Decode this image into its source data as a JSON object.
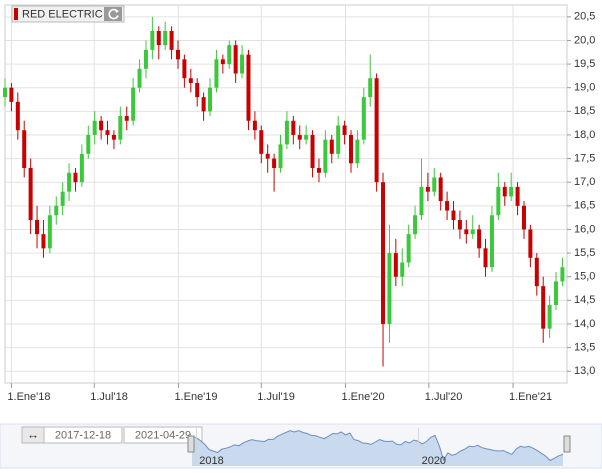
{
  "chart_data": {
    "type": "candlestick",
    "title": "RED ELECTRIC",
    "x": [
      "2017-12-18",
      "2018-01-01",
      "2018-01-15",
      "2018-01-29",
      "2018-02-12",
      "2018-02-26",
      "2018-03-12",
      "2018-03-26",
      "2018-04-09",
      "2018-04-23",
      "2018-05-07",
      "2018-05-21",
      "2018-06-04",
      "2018-06-18",
      "2018-07-02",
      "2018-07-16",
      "2018-07-30",
      "2018-08-13",
      "2018-08-27",
      "2018-09-10",
      "2018-09-24",
      "2018-10-08",
      "2018-10-22",
      "2018-11-05",
      "2018-11-19",
      "2018-12-03",
      "2018-12-17",
      "2018-12-31",
      "2019-01-14",
      "2019-01-28",
      "2019-02-11",
      "2019-02-25",
      "2019-03-11",
      "2019-03-25",
      "2019-04-08",
      "2019-04-22",
      "2019-05-06",
      "2019-05-20",
      "2019-06-03",
      "2019-06-17",
      "2019-07-01",
      "2019-07-15",
      "2019-07-29",
      "2019-08-12",
      "2019-08-26",
      "2019-09-09",
      "2019-09-23",
      "2019-10-07",
      "2019-10-21",
      "2019-11-04",
      "2019-11-18",
      "2019-12-02",
      "2019-12-16",
      "2019-12-30",
      "2020-01-13",
      "2020-01-27",
      "2020-02-10",
      "2020-02-24",
      "2020-03-09",
      "2020-03-23",
      "2020-04-06",
      "2020-04-20",
      "2020-05-04",
      "2020-05-18",
      "2020-06-01",
      "2020-06-15",
      "2020-06-29",
      "2020-07-13",
      "2020-07-27",
      "2020-08-10",
      "2020-08-24",
      "2020-09-07",
      "2020-09-21",
      "2020-10-05",
      "2020-10-19",
      "2020-11-02",
      "2020-11-16",
      "2020-11-30",
      "2020-12-14",
      "2020-12-28",
      "2021-01-11",
      "2021-01-25",
      "2021-02-08",
      "2021-02-22",
      "2021-03-08",
      "2021-03-22",
      "2021-04-05",
      "2021-04-19"
    ],
    "open": [
      18.8,
      19.0,
      18.7,
      18.1,
      17.3,
      16.2,
      15.9,
      15.6,
      16.3,
      16.5,
      16.8,
      17.2,
      17.0,
      17.6,
      18.0,
      18.3,
      18.1,
      18.0,
      17.9,
      18.4,
      18.3,
      19.0,
      19.4,
      19.8,
      20.2,
      19.9,
      20.2,
      19.8,
      19.6,
      19.2,
      19.1,
      18.8,
      18.5,
      19.0,
      19.6,
      19.5,
      19.9,
      19.3,
      19.7,
      18.3,
      18.1,
      17.6,
      17.5,
      17.3,
      17.8,
      18.3,
      18.0,
      17.9,
      18.0,
      17.3,
      17.2,
      17.9,
      17.6,
      18.2,
      18.0,
      17.4,
      17.9,
      18.8,
      19.2,
      17.0,
      14.0,
      15.5,
      15.0,
      15.3,
      15.9,
      16.3,
      16.9,
      16.8,
      17.1,
      16.6,
      16.4,
      16.2,
      16.0,
      15.9,
      16.0,
      15.6,
      15.2,
      16.3,
      16.9,
      16.7,
      16.9,
      16.5,
      16.0,
      15.4,
      14.8,
      13.9,
      14.4,
      14.9
    ],
    "high": [
      19.2,
      19.1,
      18.9,
      18.3,
      17.5,
      16.5,
      16.2,
      16.5,
      16.7,
      17.0,
      17.4,
      17.3,
      17.8,
      18.2,
      18.5,
      18.4,
      18.3,
      18.1,
      18.6,
      18.6,
      19.2,
      19.6,
      20.0,
      20.5,
      20.3,
      20.4,
      20.3,
      20.0,
      19.7,
      19.4,
      19.2,
      18.9,
      19.2,
      19.8,
      19.7,
      20.0,
      20.0,
      19.9,
      19.8,
      18.5,
      18.2,
      17.8,
      17.6,
      18.0,
      18.5,
      18.4,
      18.2,
      18.2,
      18.1,
      17.5,
      18.1,
      18.0,
      18.4,
      18.3,
      18.1,
      18.1,
      19.0,
      19.7,
      19.3,
      17.2,
      16.1,
      15.8,
      15.6,
      16.1,
      16.5,
      17.5,
      17.2,
      17.3,
      17.2,
      16.8,
      16.6,
      16.4,
      16.2,
      16.3,
      16.1,
      15.8,
      16.5,
      17.2,
      17.0,
      17.2,
      17.0,
      16.6,
      16.1,
      15.5,
      15.0,
      14.6,
      15.1,
      15.4
    ],
    "low": [
      18.6,
      18.5,
      17.9,
      17.1,
      15.9,
      15.6,
      15.4,
      15.5,
      16.1,
      16.3,
      16.6,
      16.8,
      16.9,
      17.5,
      17.8,
      17.9,
      17.8,
      17.7,
      17.8,
      18.1,
      18.2,
      18.9,
      19.2,
      19.6,
      19.6,
      19.8,
      19.6,
      19.4,
      19.0,
      18.9,
      18.6,
      18.3,
      18.4,
      18.9,
      19.3,
      19.4,
      19.1,
      19.2,
      18.1,
      17.9,
      17.4,
      17.2,
      16.8,
      17.2,
      17.7,
      17.8,
      17.7,
      17.8,
      17.1,
      17.0,
      17.1,
      17.4,
      17.5,
      17.8,
      17.2,
      17.3,
      17.8,
      18.6,
      16.8,
      13.1,
      13.6,
      14.8,
      14.8,
      15.2,
      15.8,
      16.2,
      16.6,
      16.7,
      16.4,
      16.2,
      16.0,
      15.8,
      15.7,
      15.8,
      15.4,
      15.0,
      15.1,
      16.2,
      16.5,
      16.6,
      16.3,
      15.8,
      15.2,
      14.6,
      13.6,
      13.7,
      14.3,
      14.8
    ],
    "close": [
      19.0,
      18.7,
      18.1,
      17.3,
      16.2,
      15.9,
      15.6,
      16.3,
      16.5,
      16.8,
      17.2,
      17.0,
      17.6,
      18.0,
      18.3,
      18.1,
      18.0,
      17.9,
      18.4,
      18.3,
      19.0,
      19.4,
      19.8,
      20.2,
      19.9,
      20.2,
      19.8,
      19.6,
      19.2,
      19.1,
      18.8,
      18.5,
      19.0,
      19.6,
      19.5,
      19.9,
      19.3,
      19.7,
      18.3,
      18.1,
      17.6,
      17.5,
      17.3,
      17.8,
      18.3,
      18.0,
      17.9,
      18.0,
      17.3,
      17.2,
      17.9,
      17.6,
      18.2,
      18.0,
      17.4,
      17.9,
      18.8,
      19.2,
      17.0,
      14.0,
      15.5,
      15.0,
      15.3,
      15.9,
      16.3,
      16.9,
      16.8,
      17.1,
      16.6,
      16.4,
      16.2,
      16.0,
      15.9,
      16.0,
      15.6,
      15.2,
      16.3,
      16.9,
      16.7,
      16.9,
      16.5,
      16.0,
      15.4,
      14.8,
      13.9,
      14.4,
      14.9,
      15.2
    ],
    "up_color": "#3cc83c",
    "down_color": "#c80000",
    "xlim": [
      "2017-12-18",
      "2021-04-29"
    ],
    "xticks": [
      {
        "value": "2018-01-01",
        "label": "1.Ene'18"
      },
      {
        "value": "2018-07-01",
        "label": "1.Jul'18"
      },
      {
        "value": "2019-01-01",
        "label": "1.Ene'19"
      },
      {
        "value": "2019-07-01",
        "label": "1.Jul'19"
      },
      {
        "value": "2020-01-01",
        "label": "1.Ene'20"
      },
      {
        "value": "2020-07-01",
        "label": "1.Jul'20"
      },
      {
        "value": "2021-01-01",
        "label": "1.Ene'21"
      }
    ],
    "ylim": [
      12.75,
      20.75
    ],
    "yticks": [
      {
        "value": 13,
        "label": "13,0"
      },
      {
        "value": 13.5,
        "label": "13,5"
      },
      {
        "value": 14,
        "label": "14,0"
      },
      {
        "value": 14.5,
        "label": "14,5"
      },
      {
        "value": 15,
        "label": "15,0"
      },
      {
        "value": 15.5,
        "label": "15,5"
      },
      {
        "value": 16,
        "label": "16,0"
      },
      {
        "value": 16.5,
        "label": "16,5"
      },
      {
        "value": 17,
        "label": "17,0"
      },
      {
        "value": 17.5,
        "label": "17,5"
      },
      {
        "value": 18,
        "label": "18,0"
      },
      {
        "value": 18.5,
        "label": "18,5"
      },
      {
        "value": 19,
        "label": "19,0"
      },
      {
        "value": 19.5,
        "label": "19,5"
      },
      {
        "value": 20,
        "label": "20,0"
      },
      {
        "value": 20.5,
        "label": "20,5"
      }
    ],
    "grid": true,
    "navigator": {
      "start": "2017-12-18",
      "end": "2021-04-29",
      "ticks": [
        {
          "value": "2018-01-01",
          "label": "2018"
        },
        {
          "value": "2020-01-01",
          "label": "2020"
        }
      ]
    }
  }
}
